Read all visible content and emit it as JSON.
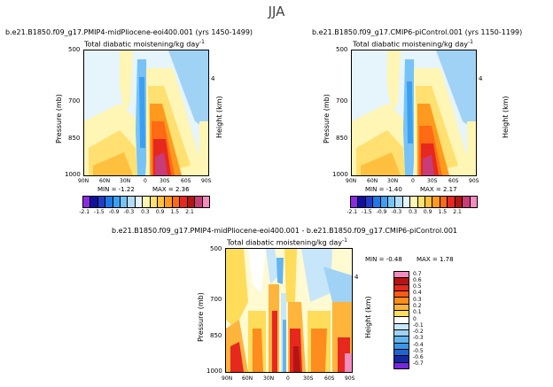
{
  "suptitle": "JJA",
  "chart_data": [
    {
      "type": "heatmap",
      "case": "b.e21.B1850.f09_g17.PMIP4-midPliocene-eoi400.001 (yrs 1450-1499)",
      "title": "Total diabatic moistening/kg day",
      "title_sup": "-1",
      "xlabel": "",
      "ylabel": "Pressure (mb)",
      "y2label": "Height (km)",
      "xticks": [
        "90N",
        "60N",
        "30N",
        "0",
        "30S",
        "60S",
        "90S"
      ],
      "yticks": [
        "500",
        "700",
        "850",
        "1000"
      ],
      "y2ticks": [
        "4"
      ],
      "ylim": [
        1000,
        500
      ],
      "min_label": "MIN =",
      "min": "-1.22",
      "max_label": "MAX =",
      "max": "2.36",
      "colorbar_labels": [
        "-2.1",
        "-1.5",
        "-0.9",
        "-0.3",
        "0.3",
        "0.9",
        "1.5",
        "2.1"
      ]
    },
    {
      "type": "heatmap",
      "case": "b.e21.B1850.f09_g17.CMIP6-piControl.001 (yrs 1150-1199)",
      "title": "Total diabatic moistening/kg day",
      "title_sup": "-1",
      "ylabel": "Pressure (mb)",
      "y2label": "Height (km)",
      "xticks": [
        "90N",
        "60N",
        "30N",
        "0",
        "30S",
        "60S",
        "90S"
      ],
      "yticks": [
        "500",
        "700",
        "850",
        "1000"
      ],
      "y2ticks": [
        "4"
      ],
      "ylim": [
        1000,
        500
      ],
      "min_label": "MIN =",
      "min": "-1.40",
      "max_label": "MAX =",
      "max": "2.17",
      "colorbar_labels": [
        "-2.1",
        "-1.5",
        "-0.9",
        "-0.3",
        "0.3",
        "0.9",
        "1.5",
        "2.1"
      ]
    },
    {
      "type": "heatmap",
      "case": "b.e21.B1850.f09_g17.PMIP4-midPliocene-eoi400.001 - b.e21.B1850.f09_g17.CMIP6-piControl.001",
      "title": "Total diabatic moistening/kg day",
      "title_sup": "-1",
      "ylabel": "Pressure (mb)",
      "y2label": "Height (km)",
      "xticks": [
        "90N",
        "60N",
        "30N",
        "0",
        "30S",
        "60S",
        "90S"
      ],
      "yticks": [
        "500",
        "700",
        "850",
        "1000"
      ],
      "y2ticks": [
        "4"
      ],
      "ylim": [
        1000,
        500
      ],
      "min_label": "MIN =",
      "min": "-0.48",
      "max_label": "MAX =",
      "max": "1.78",
      "colorbar_labels": [
        "0.7",
        "0.6",
        "0.5",
        "0.4",
        "0.3",
        "0.2",
        "0.1",
        "0",
        "-0.1",
        "-0.2",
        "-0.3",
        "-0.4",
        "-0.5",
        "-0.6",
        "-0.7"
      ]
    }
  ],
  "colors": {
    "top_scale": [
      "#8a2be2",
      "#1010a0",
      "#1e3cc8",
      "#1e78e6",
      "#3ca0f0",
      "#78c3f5",
      "#b4dcf5",
      "#e6f4fb",
      "#fff5b4",
      "#ffe070",
      "#ffc040",
      "#ff9a1e",
      "#ff6a14",
      "#e6281e",
      "#b41414",
      "#c83c78",
      "#f58cbe"
    ],
    "diff_scale": [
      "#f58cbe",
      "#b41414",
      "#e6281e",
      "#ff5a14",
      "#ff8c1e",
      "#ffb43c",
      "#ffdc5a",
      "#ffffff",
      "#c8e6fa",
      "#a0d2f5",
      "#64b4f0",
      "#3c96e6",
      "#1e64d2",
      "#1428a0",
      "#7828dc"
    ]
  }
}
